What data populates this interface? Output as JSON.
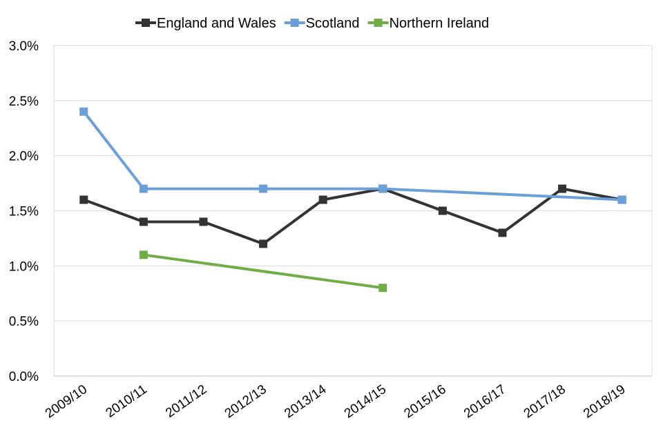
{
  "chart_data": {
    "type": "line",
    "title": "",
    "xlabel": "",
    "ylabel": "",
    "categories": [
      "2009/10",
      "2010/11",
      "2011/12",
      "2012/13",
      "2013/14",
      "2014/15",
      "2015/16",
      "2016/17",
      "2017/18",
      "2018/19"
    ],
    "ylim": [
      0,
      3.0
    ],
    "yticks": [
      0,
      0.5,
      1.0,
      1.5,
      2.0,
      2.5,
      3.0
    ],
    "ytick_labels": [
      "0.0%",
      "0.5%",
      "1.0%",
      "1.5%",
      "2.0%",
      "2.5%",
      "3.0%"
    ],
    "grid": "horizontal",
    "legend": "top",
    "series": [
      {
        "name": "England and Wales",
        "color": "#333333",
        "values": [
          1.6,
          1.4,
          1.4,
          1.2,
          1.6,
          1.7,
          1.5,
          1.3,
          1.7,
          1.6
        ]
      },
      {
        "name": "Scotland",
        "color": "#6a9fd8",
        "values": [
          2.4,
          1.7,
          null,
          1.7,
          null,
          1.7,
          null,
          null,
          null,
          1.6
        ]
      },
      {
        "name": "Northern Ireland",
        "color": "#70ad47",
        "values": [
          null,
          1.1,
          null,
          null,
          null,
          0.8,
          null,
          null,
          null,
          null
        ]
      }
    ]
  }
}
